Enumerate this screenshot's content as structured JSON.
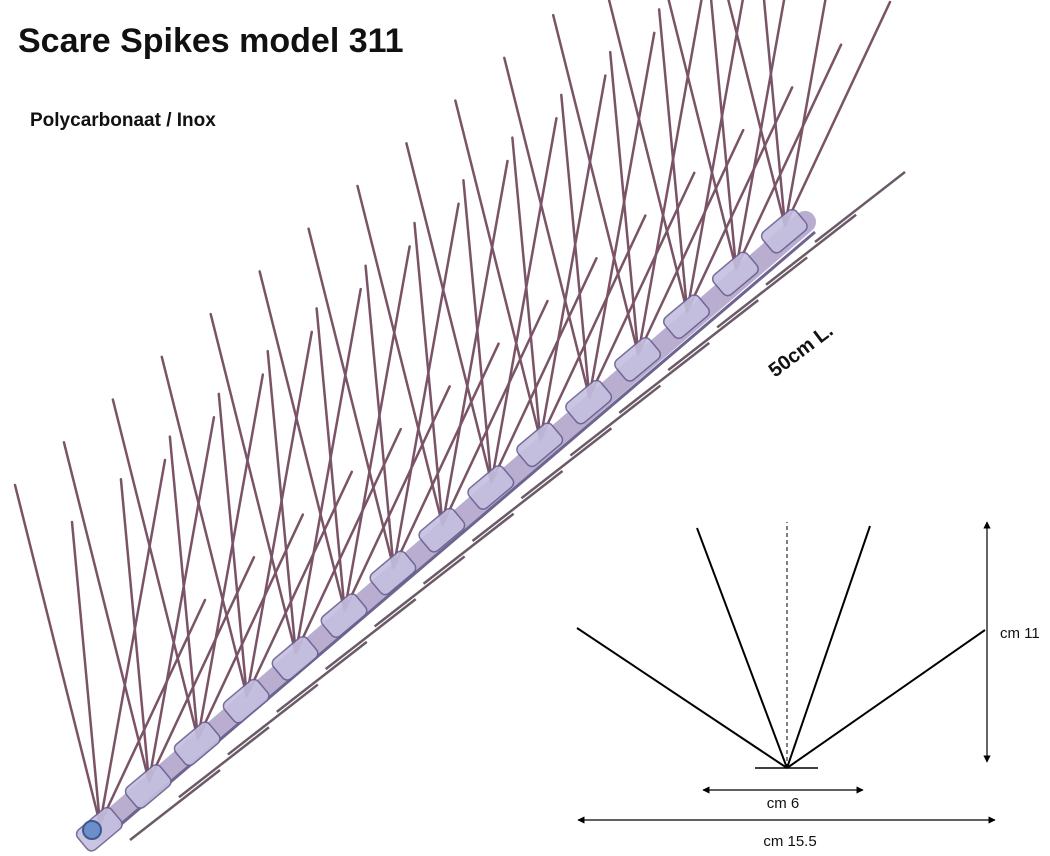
{
  "header": {
    "title": "Scare Spikes model 311",
    "subtitle": "Polycarbonaat / Inox"
  },
  "product": {
    "length_label": "50cm L."
  },
  "diagram": {
    "height_label": "cm 11",
    "base_width_label": "cm 6",
    "total_width_label": "cm 15.5"
  }
}
